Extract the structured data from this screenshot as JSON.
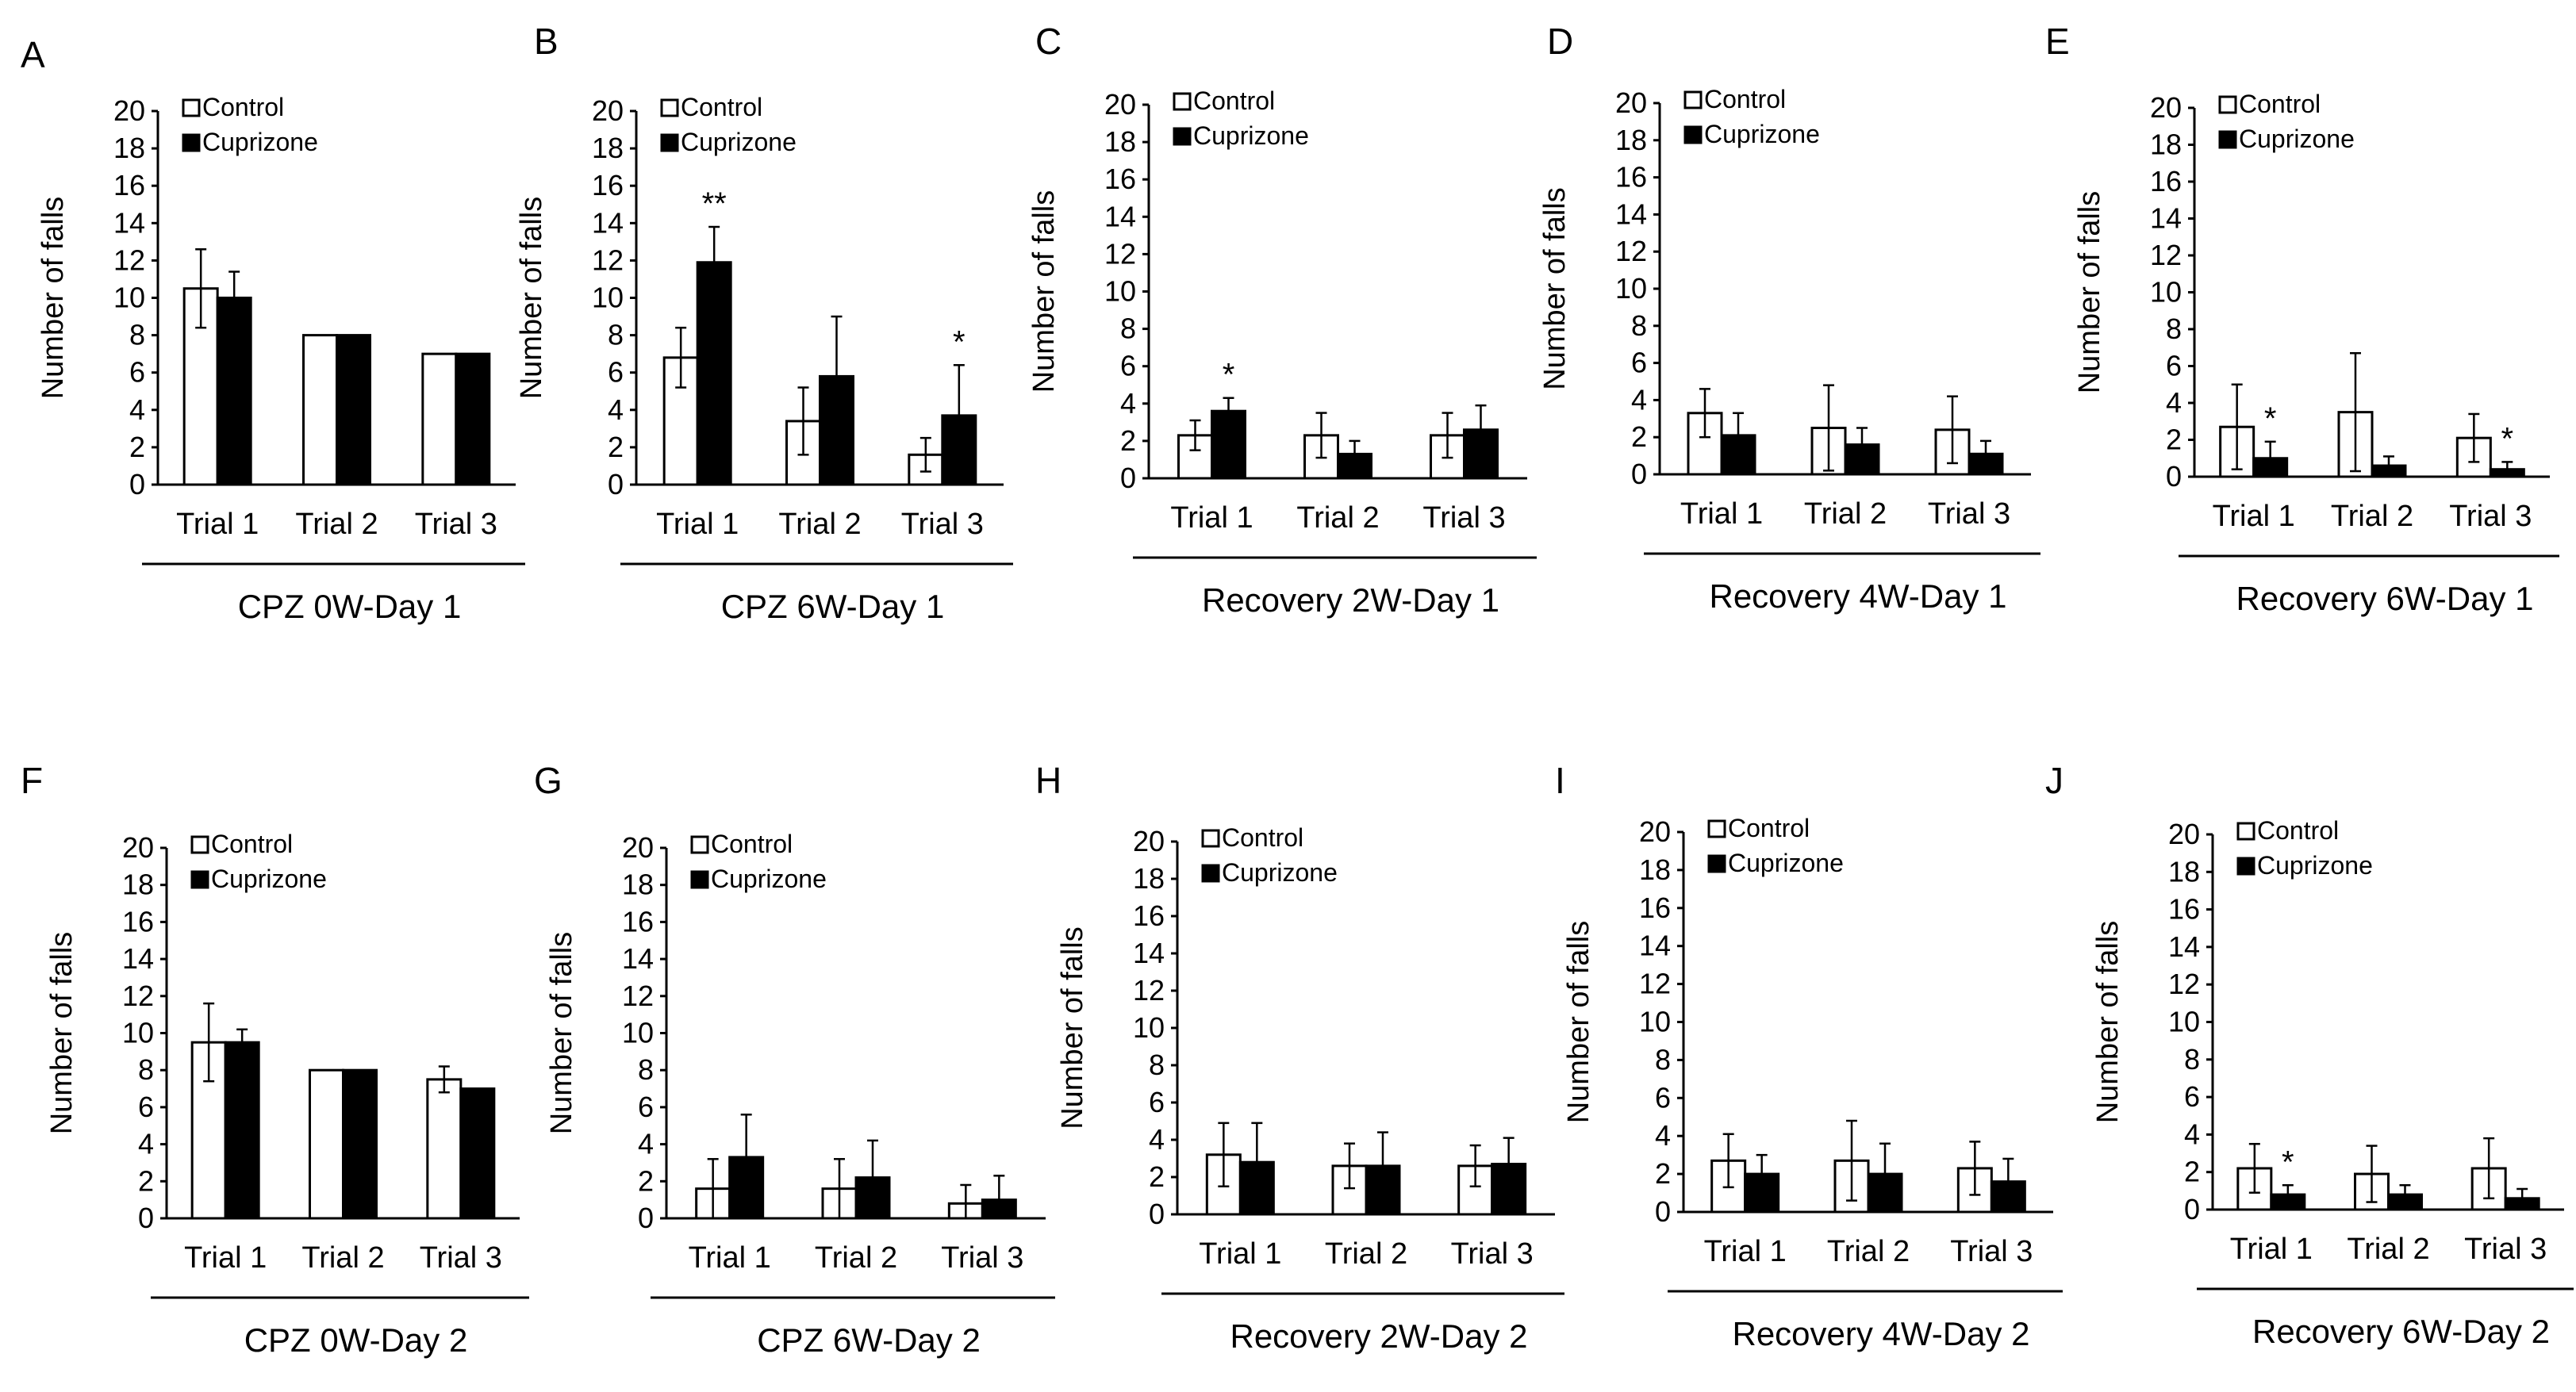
{
  "legend": {
    "control": "Control",
    "cuprizone": "Cuprizone"
  },
  "colors": {
    "control_fill": "#ffffff",
    "cuprizone_fill": "#000000",
    "axis": "#000000"
  },
  "chart_data": [
    {
      "panel": "A",
      "type": "bar",
      "subtitle": "CPZ 0W-Day 1",
      "ylabel": "Number of falls",
      "categories": [
        "Trial 1",
        "Trial 2",
        "Trial 3"
      ],
      "ylim": [
        0,
        20
      ],
      "yticks": [
        "0",
        "2",
        "4",
        "6",
        "8",
        "10",
        "12",
        "14",
        "16",
        "18",
        "20"
      ],
      "series": [
        {
          "name": "Control",
          "values": [
            10.5,
            8,
            7
          ],
          "errors": [
            2.1,
            0,
            0
          ]
        },
        {
          "name": "Cuprizone",
          "values": [
            10,
            8,
            7
          ],
          "errors": [
            1.4,
            0,
            0
          ]
        }
      ],
      "annotations": [
        "",
        "",
        ""
      ]
    },
    {
      "panel": "B",
      "type": "bar",
      "subtitle": "CPZ 6W-Day 1",
      "ylabel": "Number of falls",
      "categories": [
        "Trial 1",
        "Trial 2",
        "Trial 3"
      ],
      "ylim": [
        0,
        20
      ],
      "yticks": [
        "0",
        "2",
        "4",
        "6",
        "8",
        "10",
        "12",
        "14",
        "16",
        "18",
        "20"
      ],
      "series": [
        {
          "name": "Control",
          "values": [
            6.8,
            3.4,
            1.6
          ],
          "errors": [
            1.6,
            1.8,
            0.9
          ]
        },
        {
          "name": "Cuprizone",
          "values": [
            11.9,
            5.8,
            3.7
          ],
          "errors": [
            1.9,
            3.2,
            2.7
          ]
        }
      ],
      "annotations": [
        "**",
        "",
        "*"
      ]
    },
    {
      "panel": "C",
      "type": "bar",
      "subtitle": "Recovery 2W-Day 1",
      "ylabel": "Number of falls",
      "categories": [
        "Trial 1",
        "Trial 2",
        "Trial 3"
      ],
      "ylim": [
        0,
        20
      ],
      "yticks": [
        "0",
        "2",
        "4",
        "6",
        "8",
        "10",
        "12",
        "14",
        "16",
        "18",
        "20"
      ],
      "series": [
        {
          "name": "Control",
          "values": [
            2.3,
            2.3,
            2.3
          ],
          "errors": [
            0.8,
            1.2,
            1.2
          ]
        },
        {
          "name": "Cuprizone",
          "values": [
            3.6,
            1.3,
            2.6
          ],
          "errors": [
            0.7,
            0.7,
            1.3
          ]
        }
      ],
      "annotations": [
        "*",
        "",
        ""
      ]
    },
    {
      "panel": "D",
      "type": "bar",
      "subtitle": "Recovery 4W-Day 1",
      "ylabel": "Number of falls",
      "categories": [
        "Trial 1",
        "Trial 2",
        "Trial 3"
      ],
      "ylim": [
        0,
        20
      ],
      "yticks": [
        "0",
        "2",
        "4",
        "6",
        "8",
        "10",
        "12",
        "14",
        "16",
        "18",
        "20"
      ],
      "series": [
        {
          "name": "Control",
          "values": [
            3.3,
            2.5,
            2.4
          ],
          "errors": [
            1.3,
            2.3,
            1.8
          ]
        },
        {
          "name": "Cuprizone",
          "values": [
            2.1,
            1.6,
            1.1
          ],
          "errors": [
            1.2,
            0.9,
            0.7
          ]
        }
      ],
      "annotations": [
        "",
        "",
        ""
      ]
    },
    {
      "panel": "E",
      "type": "bar",
      "subtitle": "Recovery 6W-Day 1",
      "ylabel": "Number of falls",
      "categories": [
        "Trial 1",
        "Trial 2",
        "Trial 3"
      ],
      "ylim": [
        0,
        20
      ],
      "yticks": [
        "0",
        "2",
        "4",
        "6",
        "8",
        "10",
        "12",
        "14",
        "16",
        "18",
        "20"
      ],
      "series": [
        {
          "name": "Control",
          "values": [
            2.7,
            3.5,
            2.1
          ],
          "errors": [
            2.3,
            3.2,
            1.3
          ]
        },
        {
          "name": "Cuprizone",
          "values": [
            1.0,
            0.6,
            0.4
          ],
          "errors": [
            0.9,
            0.5,
            0.4
          ]
        }
      ],
      "annotations": [
        "*",
        "",
        "*"
      ]
    },
    {
      "panel": "F",
      "type": "bar",
      "subtitle": "CPZ 0W-Day 2",
      "ylabel": "Number of falls",
      "categories": [
        "Trial 1",
        "Trial 2",
        "Trial 3"
      ],
      "ylim": [
        0,
        20
      ],
      "yticks": [
        "0",
        "2",
        "4",
        "6",
        "8",
        "10",
        "12",
        "14",
        "16",
        "18",
        "20"
      ],
      "series": [
        {
          "name": "Control",
          "values": [
            9.5,
            8,
            7.5
          ],
          "errors": [
            2.1,
            0,
            0.7
          ]
        },
        {
          "name": "Cuprizone",
          "values": [
            9.5,
            8,
            7
          ],
          "errors": [
            0.7,
            0,
            0
          ]
        }
      ],
      "annotations": [
        "",
        "",
        ""
      ]
    },
    {
      "panel": "G",
      "type": "bar",
      "subtitle": "CPZ 6W-Day 2",
      "ylabel": "Number of falls",
      "categories": [
        "Trial 1",
        "Trial 2",
        "Trial 3"
      ],
      "ylim": [
        0,
        20
      ],
      "yticks": [
        "0",
        "2",
        "4",
        "6",
        "8",
        "10",
        "12",
        "14",
        "16",
        "18",
        "20"
      ],
      "series": [
        {
          "name": "Control",
          "values": [
            1.6,
            1.6,
            0.8
          ],
          "errors": [
            1.6,
            1.6,
            1.0
          ]
        },
        {
          "name": "Cuprizone",
          "values": [
            3.3,
            2.2,
            1.0
          ],
          "errors": [
            2.3,
            2.0,
            1.3
          ]
        }
      ],
      "annotations": [
        "",
        "",
        ""
      ]
    },
    {
      "panel": "H",
      "type": "bar",
      "subtitle": "Recovery 2W-Day 2",
      "ylabel": "Number of falls",
      "categories": [
        "Trial 1",
        "Trial 2",
        "Trial 3"
      ],
      "ylim": [
        0,
        20
      ],
      "yticks": [
        "0",
        "2",
        "4",
        "6",
        "8",
        "10",
        "12",
        "14",
        "16",
        "18",
        "20"
      ],
      "series": [
        {
          "name": "Control",
          "values": [
            3.2,
            2.6,
            2.6
          ],
          "errors": [
            1.7,
            1.2,
            1.1
          ]
        },
        {
          "name": "Cuprizone",
          "values": [
            2.8,
            2.6,
            2.7
          ],
          "errors": [
            2.1,
            1.8,
            1.4
          ]
        }
      ],
      "annotations": [
        "",
        "",
        ""
      ]
    },
    {
      "panel": "I",
      "type": "bar",
      "subtitle": "Recovery 4W-Day 2",
      "ylabel": "Number of falls",
      "categories": [
        "Trial 1",
        "Trial 2",
        "Trial 3"
      ],
      "ylim": [
        0,
        20
      ],
      "yticks": [
        "0",
        "2",
        "4",
        "6",
        "8",
        "10",
        "12",
        "14",
        "16",
        "18",
        "20"
      ],
      "series": [
        {
          "name": "Control",
          "values": [
            2.7,
            2.7,
            2.3
          ],
          "errors": [
            1.4,
            2.1,
            1.4
          ]
        },
        {
          "name": "Cuprizone",
          "values": [
            2.0,
            2.0,
            1.6
          ],
          "errors": [
            1.0,
            1.6,
            1.2
          ]
        }
      ],
      "annotations": [
        "",
        "",
        ""
      ]
    },
    {
      "panel": "J",
      "type": "bar",
      "subtitle": "Recovery 6W-Day 2",
      "ylabel": "Number of falls",
      "categories": [
        "Trial 1",
        "Trial 2",
        "Trial 3"
      ],
      "ylim": [
        0,
        20
      ],
      "yticks": [
        "0",
        "2",
        "4",
        "6",
        "8",
        "10",
        "12",
        "14",
        "16",
        "18",
        "20"
      ],
      "series": [
        {
          "name": "Control",
          "values": [
            2.2,
            1.9,
            2.2
          ],
          "errors": [
            1.3,
            1.5,
            1.6
          ]
        },
        {
          "name": "Cuprizone",
          "values": [
            0.8,
            0.8,
            0.6
          ],
          "errors": [
            0.5,
            0.5,
            0.5
          ]
        }
      ],
      "annotations": [
        "*",
        "",
        ""
      ]
    }
  ]
}
